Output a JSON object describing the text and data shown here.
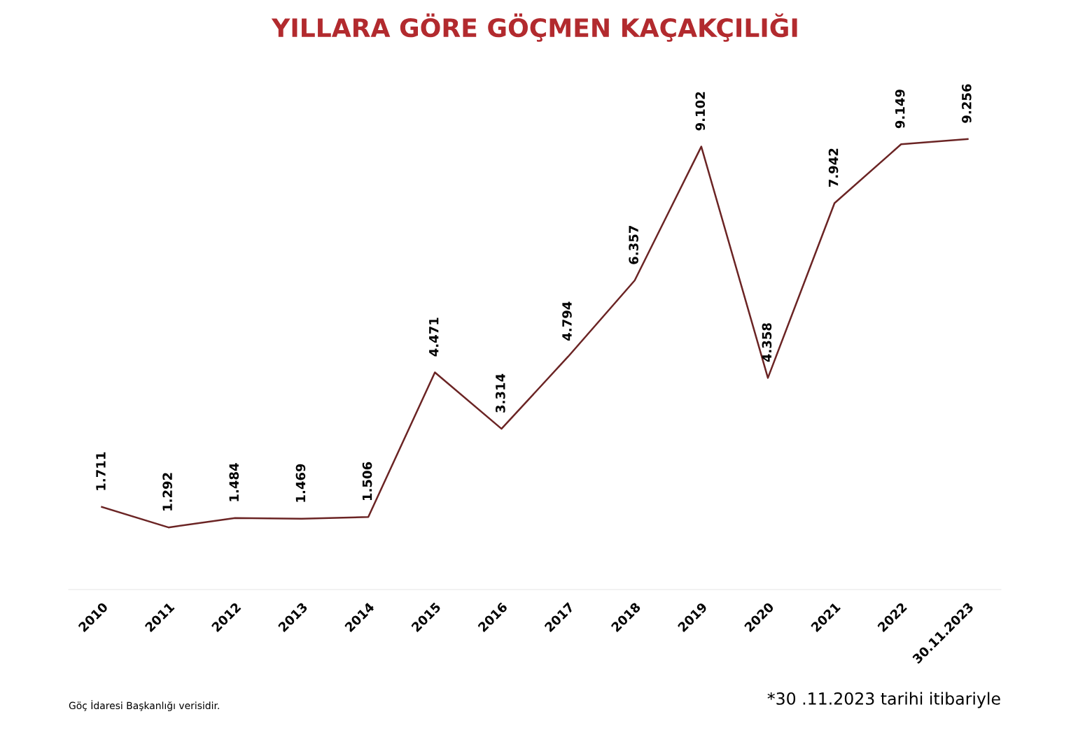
{
  "chart_data": {
    "type": "line",
    "title": "YILLARA GÖRE GÖÇMEN KAÇAKÇILIĞI",
    "categories": [
      "2010",
      "2011",
      "2012",
      "2013",
      "2014",
      "2015",
      "2016",
      "2017",
      "2018",
      "2019",
      "2020",
      "2021",
      "2022",
      "30.11.2023"
    ],
    "series": [
      {
        "color": "#6b2424",
        "values": [
          1711,
          1292,
          1484,
          1469,
          1506,
          4471,
          3314,
          4794,
          6357,
          9102,
          4358,
          7942,
          9149,
          9256
        ],
        "value_labels": [
          "1.711",
          "1.292",
          "1.484",
          "1.469",
          "1.506",
          "4.471",
          "3.314",
          "4.794",
          "6.357",
          "9.102",
          "4.358",
          "7.942",
          "9.149",
          "9.256"
        ]
      }
    ],
    "tick_labels": "x",
    "grid": false,
    "legend": false,
    "marker": "none",
    "line_style": "solid",
    "annotations": [
      "Göç İdaresi Başkanlığı verisidir.",
      "*30 .11.2023 tarihi itibariyle"
    ]
  }
}
